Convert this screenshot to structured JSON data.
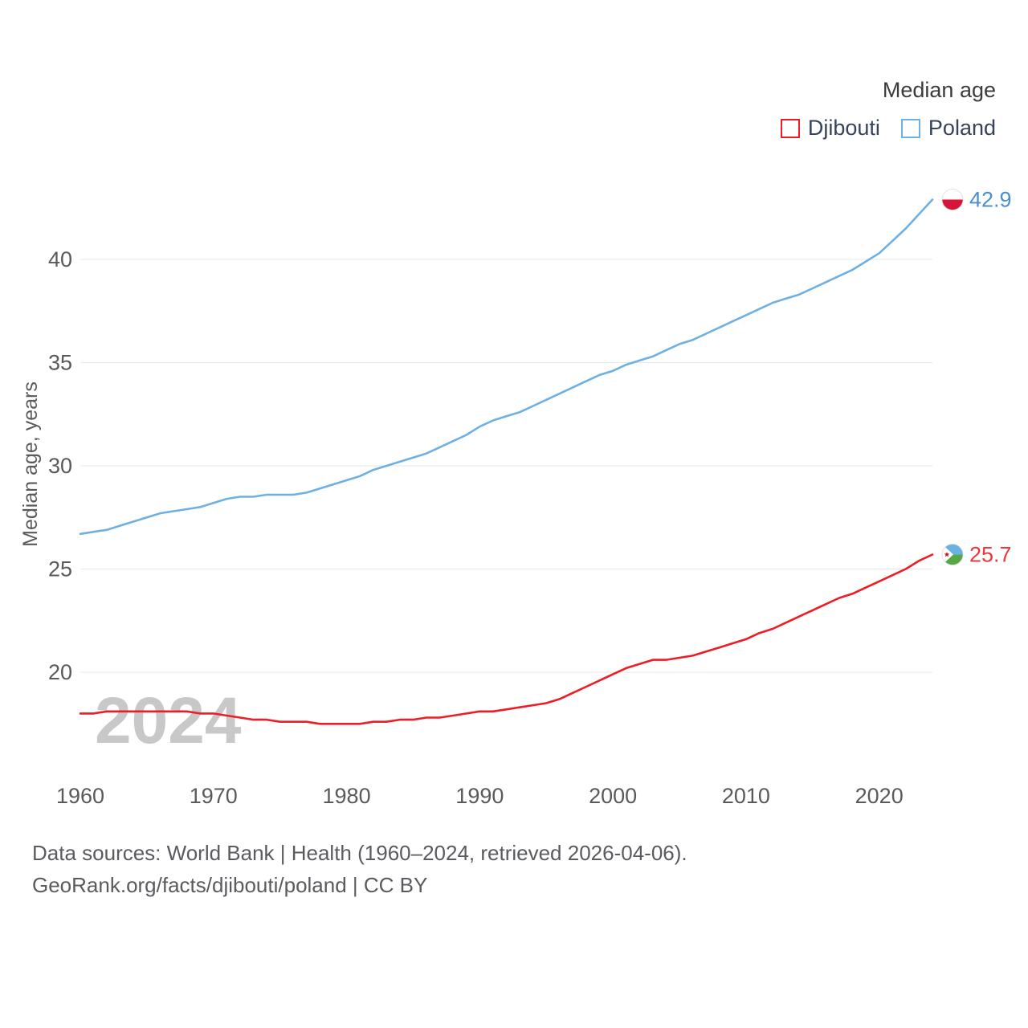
{
  "watermark": "2024",
  "legend": {
    "title": "Median age",
    "items": [
      {
        "label": "Djibouti",
        "color": "#ee1c25"
      },
      {
        "label": "Poland",
        "color": "#6fb0e3"
      }
    ]
  },
  "footer": {
    "line1": "Data sources: World Bank | Health (1960–2024, retrieved 2026-04-06).",
    "line2": "GeoRank.org/facts/djibouti/poland | CC BY"
  },
  "chart_data": {
    "type": "line",
    "title": "Median age",
    "ylabel": "Median age, years",
    "xlabel": "",
    "ylim": [
      17,
      43.5
    ],
    "xlim": [
      1960,
      2024
    ],
    "grid": "horizontal",
    "legend_position": "top-right",
    "yticks": [
      20,
      25,
      30,
      35,
      40
    ],
    "xticks": [
      1960,
      1970,
      1980,
      1990,
      2000,
      2010,
      2020
    ],
    "x": [
      1960,
      1961,
      1962,
      1963,
      1964,
      1965,
      1966,
      1967,
      1968,
      1969,
      1970,
      1971,
      1972,
      1973,
      1974,
      1975,
      1976,
      1977,
      1978,
      1979,
      1980,
      1981,
      1982,
      1983,
      1984,
      1985,
      1986,
      1987,
      1988,
      1989,
      1990,
      1991,
      1992,
      1993,
      1994,
      1995,
      1996,
      1997,
      1998,
      1999,
      2000,
      2001,
      2002,
      2003,
      2004,
      2005,
      2006,
      2007,
      2008,
      2009,
      2010,
      2011,
      2012,
      2013,
      2014,
      2015,
      2016,
      2017,
      2018,
      2019,
      2020,
      2021,
      2022,
      2023,
      2024
    ],
    "series": [
      {
        "name": "Djibouti",
        "color": "#ee1c25",
        "values": [
          18.0,
          18.0,
          18.1,
          18.1,
          18.1,
          18.1,
          18.1,
          18.1,
          18.1,
          18.0,
          18.0,
          17.9,
          17.8,
          17.7,
          17.7,
          17.6,
          17.6,
          17.6,
          17.5,
          17.5,
          17.5,
          17.5,
          17.6,
          17.6,
          17.7,
          17.7,
          17.8,
          17.8,
          17.9,
          18.0,
          18.1,
          18.1,
          18.2,
          18.3,
          18.4,
          18.5,
          18.7,
          19.0,
          19.3,
          19.6,
          19.9,
          20.2,
          20.4,
          20.6,
          20.6,
          20.7,
          20.8,
          21.0,
          21.2,
          21.4,
          21.6,
          21.9,
          22.1,
          22.4,
          22.7,
          23.0,
          23.3,
          23.6,
          23.8,
          24.1,
          24.4,
          24.7,
          25.0,
          25.4,
          25.7
        ]
      },
      {
        "name": "Poland",
        "color": "#6fb0e3",
        "values": [
          26.7,
          26.8,
          26.9,
          27.1,
          27.3,
          27.5,
          27.7,
          27.8,
          27.9,
          28.0,
          28.2,
          28.4,
          28.5,
          28.5,
          28.6,
          28.6,
          28.6,
          28.7,
          28.9,
          29.1,
          29.3,
          29.5,
          29.8,
          30.0,
          30.2,
          30.4,
          30.6,
          30.9,
          31.2,
          31.5,
          31.9,
          32.2,
          32.4,
          32.6,
          32.9,
          33.2,
          33.5,
          33.8,
          34.1,
          34.4,
          34.6,
          34.9,
          35.1,
          35.3,
          35.6,
          35.9,
          36.1,
          36.4,
          36.7,
          37.0,
          37.3,
          37.6,
          37.9,
          38.1,
          38.3,
          38.6,
          38.9,
          39.2,
          39.5,
          39.9,
          40.3,
          40.9,
          41.5,
          42.2,
          42.9
        ]
      }
    ],
    "end_labels": [
      {
        "series": "Poland",
        "text": "42.9",
        "color": "#4a8fd1",
        "flag": "poland-flag-icon"
      },
      {
        "series": "Djibouti",
        "text": "25.7",
        "color": "#f0353e",
        "flag": "djibouti-flag-icon"
      }
    ]
  }
}
